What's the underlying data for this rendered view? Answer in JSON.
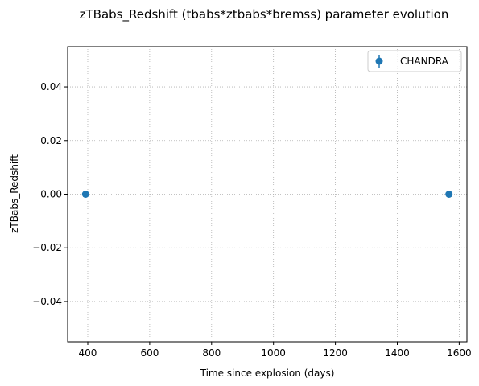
{
  "chart_data": {
    "type": "scatter",
    "title": "zTBabs_Redshift (tbabs*ztbabs*bremss) parameter evolution",
    "xlabel": "Time since explosion (days)",
    "ylabel": "zTBabs_Redshift",
    "xlim": [
      335,
      1625
    ],
    "ylim": [
      -0.055,
      0.055
    ],
    "xticks": [
      400,
      600,
      800,
      1000,
      1200,
      1400,
      1600
    ],
    "xtick_labels": [
      "400",
      "600",
      "800",
      "1000",
      "1200",
      "1400",
      "1600"
    ],
    "yticks": [
      -0.04,
      -0.02,
      0.0,
      0.02,
      0.04
    ],
    "ytick_labels": [
      "−0.04",
      "−0.02",
      "0.00",
      "0.02",
      "0.04"
    ],
    "grid": true,
    "legend_position": "top-right",
    "series": [
      {
        "name": "CHANDRA",
        "color": "#1f77b4",
        "x": [
          393,
          1567
        ],
        "y": [
          0.0,
          0.0
        ]
      }
    ]
  }
}
